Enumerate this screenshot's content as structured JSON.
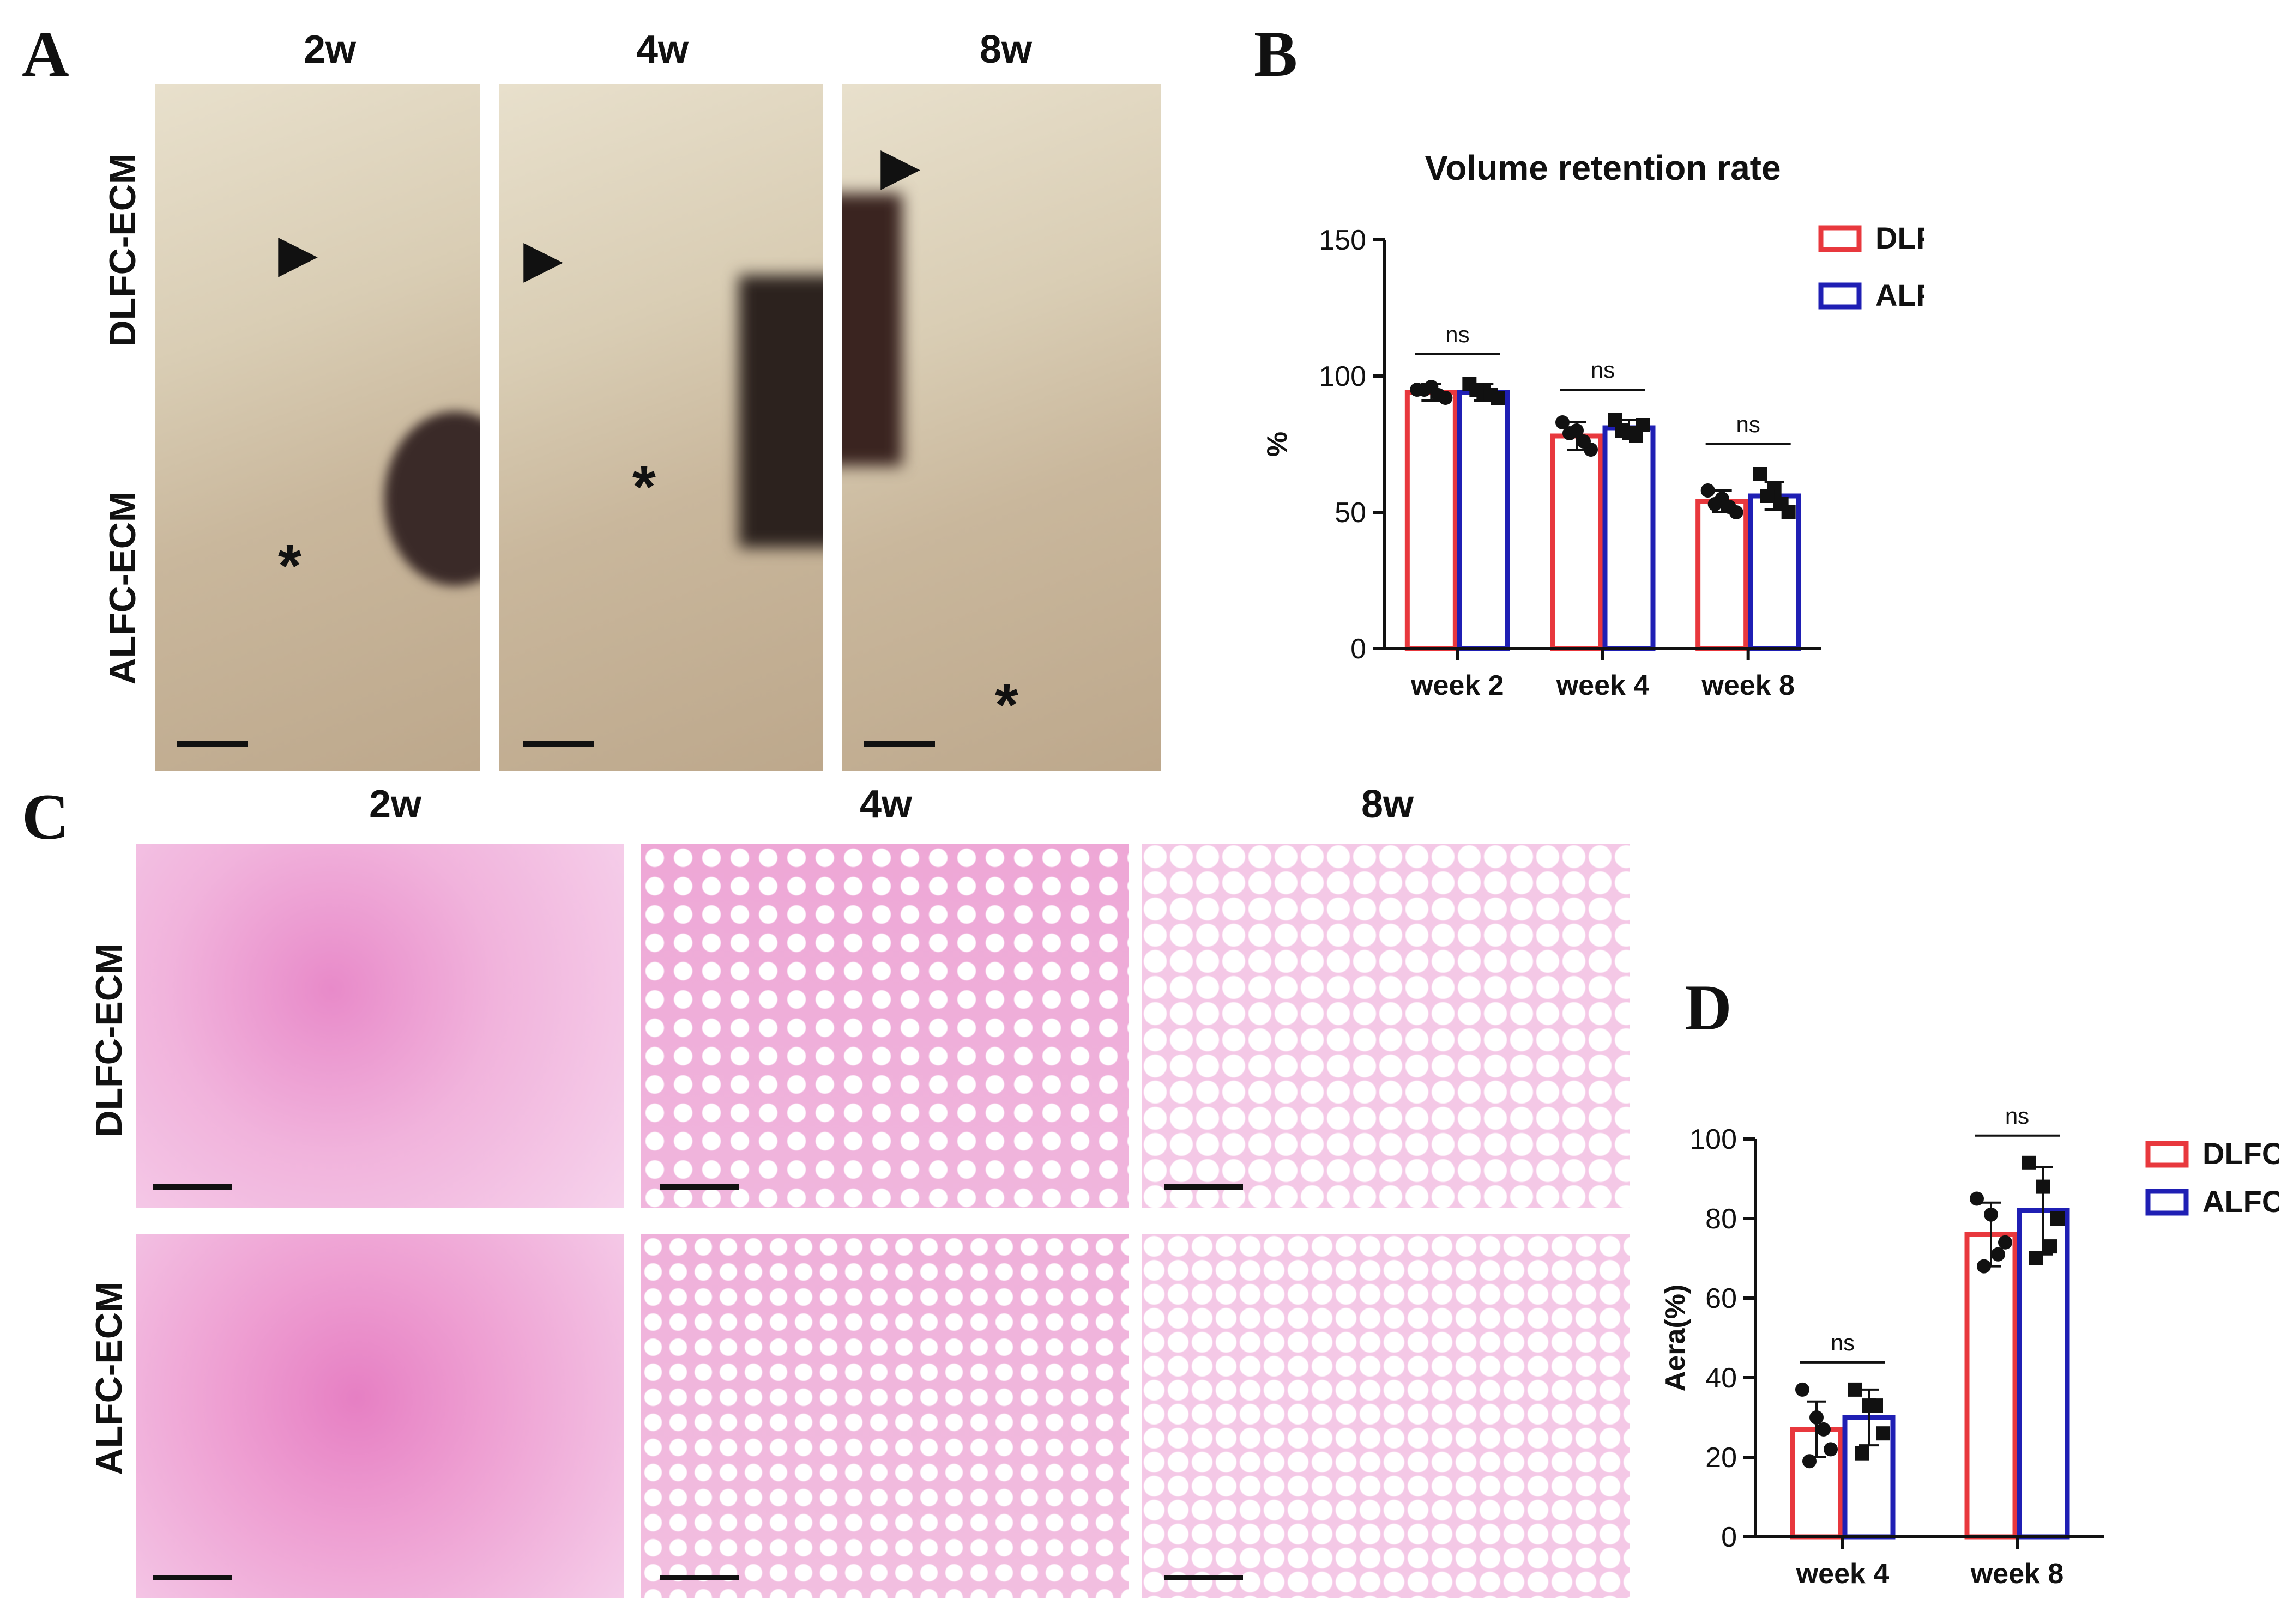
{
  "panels": {
    "A": {
      "letter": "A",
      "columns": [
        "2w",
        "4w",
        "8w"
      ],
      "rows": [
        "DLFC-ECM",
        "ALFC-ECM"
      ],
      "arrow_marker": "▶",
      "asterisk_marker": "*"
    },
    "C": {
      "letter": "C",
      "columns": [
        "2w",
        "4w",
        "8w"
      ],
      "rows": [
        "DLFC-ECM",
        "ALFC-ECM"
      ]
    },
    "B": {
      "letter": "B"
    },
    "D": {
      "letter": "D"
    }
  },
  "colors": {
    "dlfc": "#e8383d",
    "alfc": "#1f1fb4"
  },
  "chart_data": [
    {
      "type": "bar",
      "title": "Volume retention rate",
      "ylabel": "%",
      "xlabel": "",
      "ylim": [
        0,
        150
      ],
      "yticks": [
        0,
        50,
        100,
        150
      ],
      "categories": [
        "week 2",
        "week 4",
        "week 8"
      ],
      "legend_position": "top-right",
      "series": [
        {
          "name": "DLFC",
          "values": [
            94,
            78,
            54
          ],
          "err": [
            3,
            5,
            4
          ],
          "points": [
            [
              95,
              96,
              92,
              95,
              93
            ],
            [
              83,
              80,
              73,
              79,
              76
            ],
            [
              58,
              55,
              50,
              53,
              52
            ]
          ]
        },
        {
          "name": "ALFC",
          "values": [
            94,
            81,
            56
          ],
          "err": [
            3,
            3,
            5
          ],
          "points": [
            [
              97,
              94,
              92,
              95,
              93
            ],
            [
              84,
              79,
              82,
              80,
              78
            ],
            [
              64,
              58,
              50,
              56,
              53
            ]
          ]
        }
      ],
      "significance": [
        "ns",
        "ns",
        "ns"
      ]
    },
    {
      "type": "bar",
      "title": "",
      "ylabel": "Aera(%)",
      "xlabel": "",
      "ylim": [
        0,
        100
      ],
      "yticks": [
        0,
        20,
        40,
        60,
        80,
        100
      ],
      "categories": [
        "week 4",
        "week 8"
      ],
      "legend_position": "top-right",
      "series": [
        {
          "name": "DLFC",
          "values": [
            27,
            76
          ],
          "err": [
            7,
            8
          ],
          "points": [
            [
              37,
              30,
              22,
              19,
              27
            ],
            [
              85,
              81,
              74,
              68,
              71
            ]
          ]
        },
        {
          "name": "ALFC",
          "values": [
            30,
            82
          ],
          "err": [
            7,
            11
          ],
          "points": [
            [
              37,
              33,
              26,
              21,
              33
            ],
            [
              94,
              88,
              80,
              70,
              73
            ]
          ]
        }
      ],
      "significance": [
        "ns",
        "ns"
      ]
    }
  ]
}
